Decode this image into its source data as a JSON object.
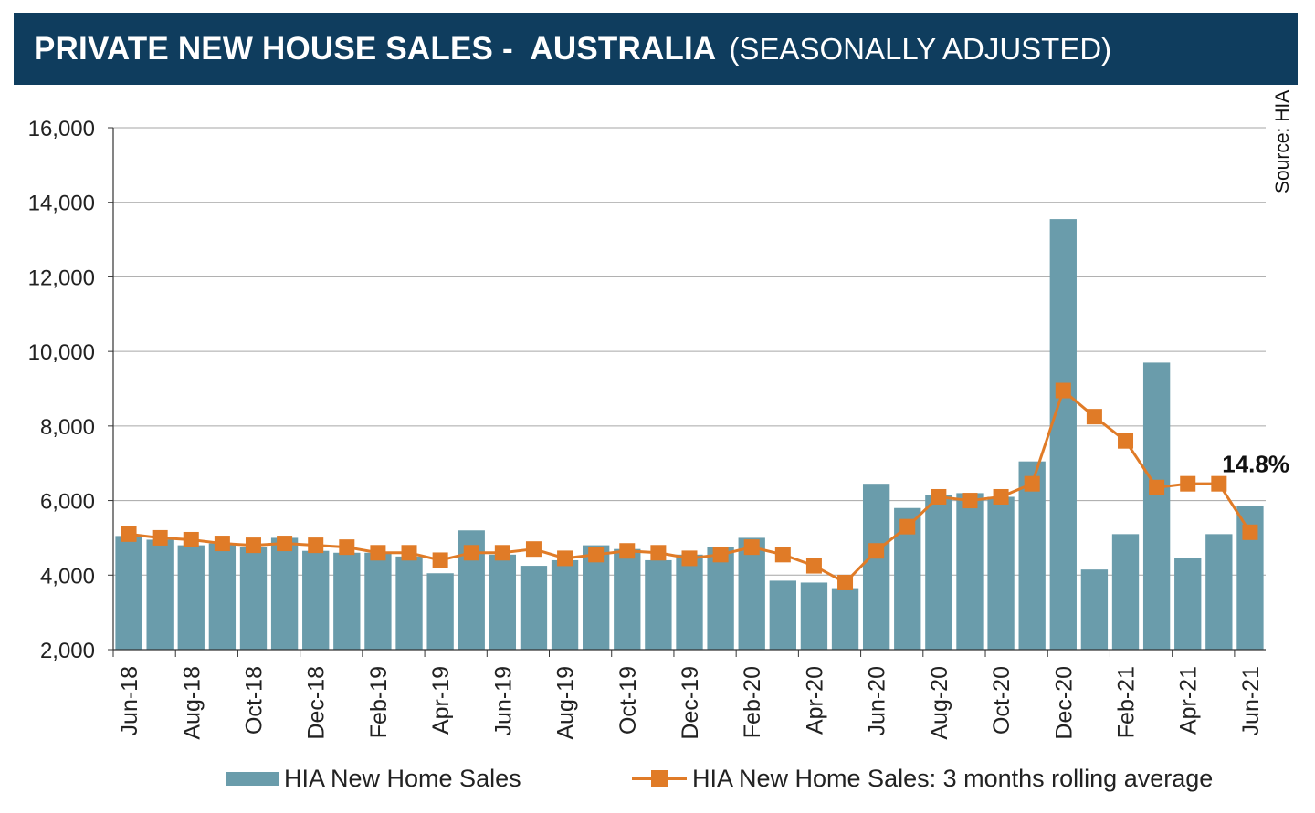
{
  "title": {
    "main": "PRIVATE NEW HOUSE SALES -  AUSTRALIA",
    "sub": "(SEASONALLY ADJUSTED)"
  },
  "source": "Source: HIA",
  "colors": {
    "header_bg": "#0f3d5e",
    "bar": "#6a9cab",
    "line": "#e07b27",
    "grid": "#a6a6a6"
  },
  "chart_data": {
    "type": "bar",
    "title": "PRIVATE NEW HOUSE SALES - AUSTRALIA (SEASONALLY ADJUSTED)",
    "xlabel": "",
    "ylabel": "",
    "ylim": [
      2000,
      16000
    ],
    "yticks": [
      2000,
      4000,
      6000,
      8000,
      10000,
      12000,
      14000,
      16000
    ],
    "ytick_labels": [
      "2,000",
      "4,000",
      "6,000",
      "8,000",
      "10,000",
      "12,000",
      "14,000",
      "16,000"
    ],
    "categories": [
      "Jun-18",
      "Jul-18",
      "Aug-18",
      "Sep-18",
      "Oct-18",
      "Nov-18",
      "Dec-18",
      "Jan-19",
      "Feb-19",
      "Mar-19",
      "Apr-19",
      "May-19",
      "Jun-19",
      "Jul-19",
      "Aug-19",
      "Sep-19",
      "Oct-19",
      "Nov-19",
      "Dec-19",
      "Jan-20",
      "Feb-20",
      "Mar-20",
      "Apr-20",
      "May-20",
      "Jun-20",
      "Jul-20",
      "Aug-20",
      "Sep-20",
      "Oct-20",
      "Nov-20",
      "Dec-20",
      "Jan-21",
      "Feb-21",
      "Mar-21",
      "Apr-21",
      "May-21",
      "Jun-21"
    ],
    "xtick_labels": [
      "Jun-18",
      "Aug-18",
      "Oct-18",
      "Dec-18",
      "Feb-19",
      "Apr-19",
      "Jun-19",
      "Aug-19",
      "Oct-19",
      "Dec-19",
      "Feb-20",
      "Apr-20",
      "Jun-20",
      "Aug-20",
      "Oct-20",
      "Dec-20",
      "Feb-21",
      "Apr-21",
      "Jun-21"
    ],
    "series": [
      {
        "name": "HIA New Home Sales",
        "type": "bar",
        "values": [
          5050,
          4950,
          4800,
          4850,
          4750,
          5000,
          4650,
          4600,
          4600,
          4500,
          4050,
          5200,
          4550,
          4250,
          4400,
          4800,
          4700,
          4400,
          4550,
          4750,
          5000,
          3850,
          3800,
          3650,
          6450,
          5800,
          6150,
          6200,
          6100,
          7050,
          13550,
          4150,
          5100,
          9700,
          4450,
          5100,
          5850
        ]
      },
      {
        "name": "HIA New Home Sales: 3 months rolling average",
        "type": "line",
        "values": [
          5100,
          5000,
          4950,
          4850,
          4800,
          4850,
          4800,
          4750,
          4600,
          4600,
          4400,
          4600,
          4600,
          4700,
          4450,
          4550,
          4650,
          4600,
          4450,
          4550,
          4750,
          4550,
          4250,
          3800,
          4650,
          5300,
          6100,
          6000,
          6100,
          6450,
          8950,
          8250,
          7600,
          6350,
          6450,
          6450,
          5150
        ]
      }
    ],
    "annotation": {
      "text": "14.8%",
      "anchor": "Jun-21"
    },
    "legend": [
      "HIA New Home Sales",
      "HIA New Home Sales: 3 months rolling average"
    ],
    "legend_position": "bottom",
    "grid": "horizontal"
  }
}
